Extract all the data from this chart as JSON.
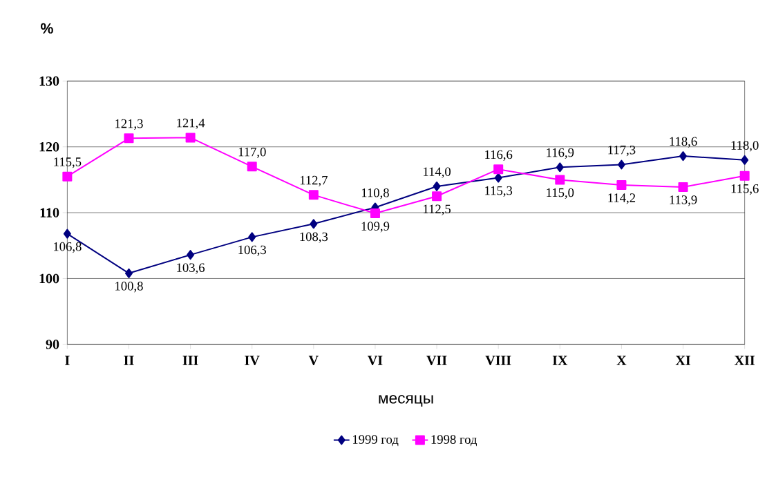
{
  "chart_data": {
    "type": "line",
    "ylabel": "%",
    "xlabel": "месяцы",
    "categories": [
      "I",
      "II",
      "III",
      "IV",
      "V",
      "VI",
      "VII",
      "VIII",
      "IX",
      "X",
      "XI",
      "XII"
    ],
    "ylim": [
      90,
      130
    ],
    "yticks": [
      90,
      100,
      110,
      120,
      130
    ],
    "grid": "y",
    "legend": "bottom",
    "line_style": "solid",
    "series": [
      {
        "name": "1999 год",
        "color": "#000080",
        "marker": "diamond",
        "values": [
          106.8,
          100.8,
          103.6,
          106.3,
          108.3,
          110.8,
          114.0,
          115.3,
          116.9,
          117.3,
          118.6,
          118.0
        ],
        "value_labels": [
          "106,8",
          "100,8",
          "103,6",
          "106,3",
          "108,3",
          "110,8",
          "114,0",
          "115,3",
          "116,9",
          "117,3",
          "118,6",
          "118,0"
        ]
      },
      {
        "name": "1998 год",
        "color": "#ff00ff",
        "marker": "square",
        "values": [
          115.5,
          121.3,
          121.4,
          117.0,
          112.7,
          109.9,
          112.5,
          116.6,
          115.0,
          114.2,
          113.9,
          115.6
        ],
        "value_labels": [
          "115,5",
          "121,3",
          "121,4",
          "117,0",
          "112,7",
          "109,9",
          "112,5",
          "116,6",
          "115,0",
          "114,2",
          "113,9",
          "115,6"
        ]
      }
    ]
  }
}
